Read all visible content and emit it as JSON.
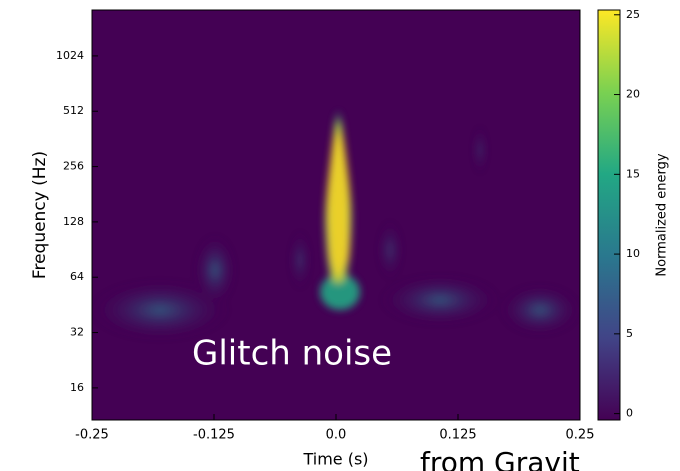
{
  "chart_data": {
    "type": "spectrogram",
    "xlabel": "Time (s)",
    "ylabel": "Frequency (Hz)",
    "xlim": [
      -0.25,
      0.25
    ],
    "xticks": [
      -0.25,
      -0.125,
      {
        "value": 0,
        "label": "0.0"
      },
      0.125,
      0.25
    ],
    "ylim": [
      10.7,
      1820
    ],
    "yscale": "log2",
    "yticks": [
      16,
      32,
      64,
      128,
      256,
      512,
      1024
    ],
    "colorbar": {
      "label": "Normalized energy",
      "lim": [
        -0.4,
        25.3
      ],
      "ticks": [
        0,
        5,
        10,
        15,
        20,
        25
      ]
    },
    "annotations": [
      "Glitch noise",
      "from Gravit"
    ]
  }
}
